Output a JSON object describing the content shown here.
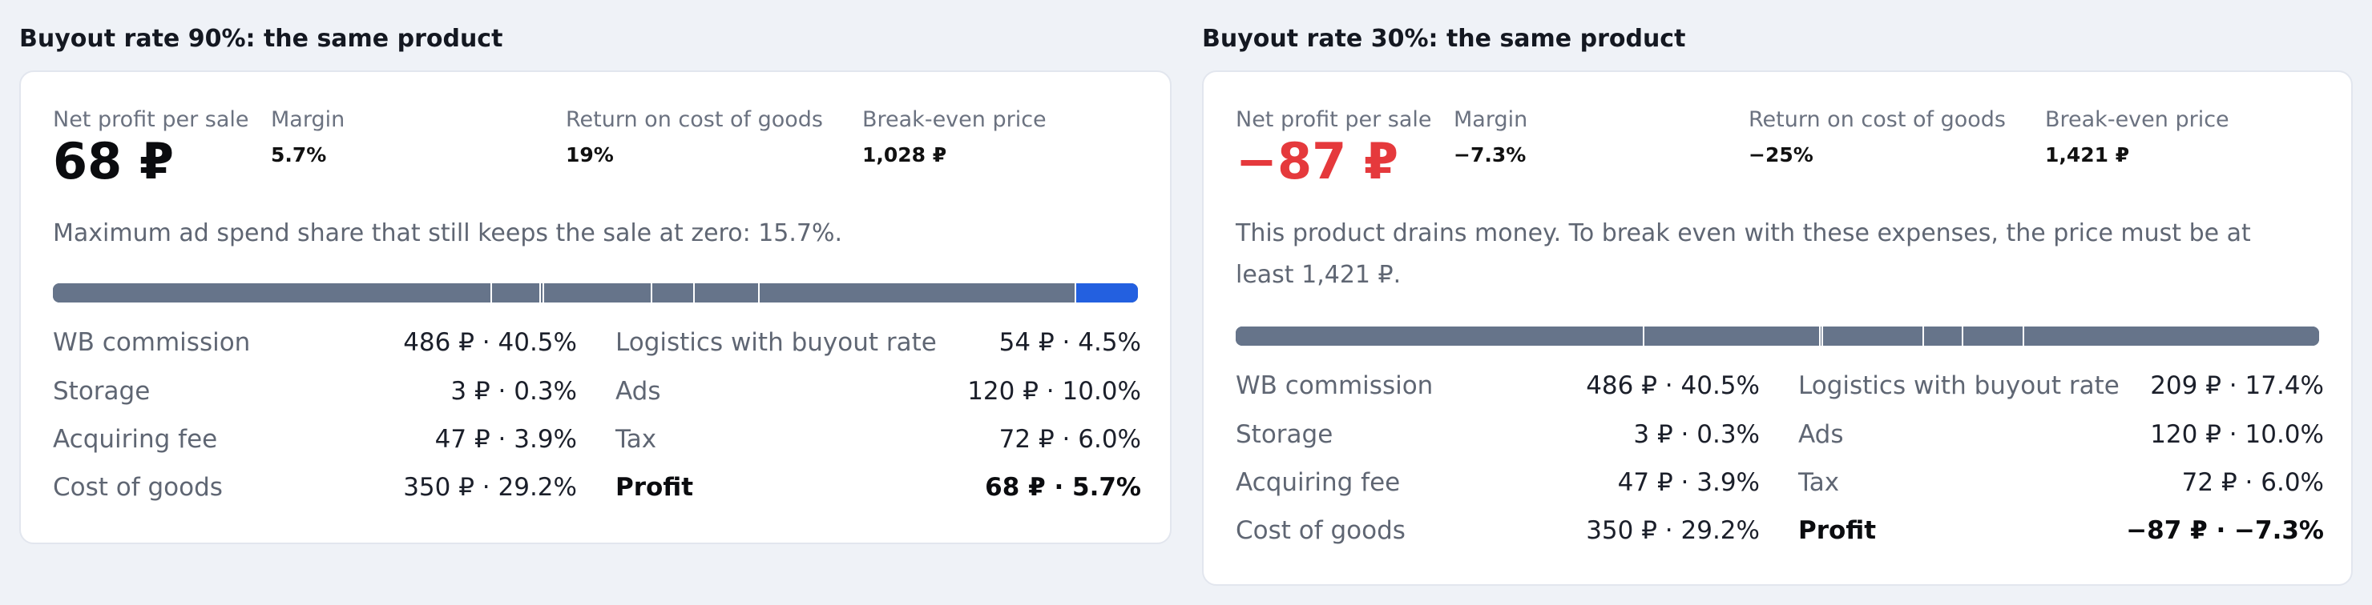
{
  "scenarios": [
    {
      "title": "Buyout rate 90%: the same product",
      "metrics": {
        "net_profit_label": "Net profit per sale",
        "net_profit_value": "68 ₽",
        "margin_label": "Margin",
        "margin_value": "5.7%",
        "roi_label": "Return on cost of goods",
        "roi_value": "19%",
        "breakeven_label": "Break-even price",
        "breakeven_value": "1,028 ₽"
      },
      "note": "Maximum ad spend share that still keeps the sale at zero: 15.7%.",
      "profit_negative": false,
      "cost_bar": [
        {
          "name": "WB commission",
          "share": 0.405
        },
        {
          "name": "Logistics with buyout rate",
          "share": 0.045
        },
        {
          "name": "Storage",
          "share": 0.003
        },
        {
          "name": "Ads",
          "share": 0.1
        },
        {
          "name": "Acquiring fee",
          "share": 0.039
        },
        {
          "name": "Tax",
          "share": 0.06
        },
        {
          "name": "Cost of goods",
          "share": 0.292
        },
        {
          "name": "Profit",
          "share": 0.057
        }
      ],
      "breakdown_left": [
        {
          "label": "WB commission",
          "value": "486 ₽ · 40.5%"
        },
        {
          "label": "Storage",
          "value": "3 ₽ · 0.3%"
        },
        {
          "label": "Acquiring fee",
          "value": "47 ₽ · 3.9%"
        },
        {
          "label": "Cost of goods",
          "value": "350 ₽ · 29.2%"
        }
      ],
      "breakdown_right": [
        {
          "label": "Logistics with buyout rate",
          "value": "54 ₽ · 4.5%"
        },
        {
          "label": "Ads",
          "value": "120 ₽ · 10.0%"
        },
        {
          "label": "Tax",
          "value": "72 ₽ · 6.0%"
        },
        {
          "label": "Profit",
          "value": "68 ₽ · 5.7%"
        }
      ]
    },
    {
      "title": "Buyout rate 30%: the same product",
      "metrics": {
        "net_profit_label": "Net profit per sale",
        "net_profit_value": "−87 ₽",
        "margin_label": "Margin",
        "margin_value": "−7.3%",
        "roi_label": "Return on cost of goods",
        "roi_value": "−25%",
        "breakeven_label": "Break-even price",
        "breakeven_value": "1,421 ₽"
      },
      "note": "This product drains money. To break even with these expenses, the price must be at least 1,421 ₽.",
      "profit_negative": true,
      "cost_bar": [
        {
          "name": "WB commission",
          "share": 0.405
        },
        {
          "name": "Logistics with buyout rate",
          "share": 0.174
        },
        {
          "name": "Storage",
          "share": 0.003
        },
        {
          "name": "Ads",
          "share": 0.1
        },
        {
          "name": "Acquiring fee",
          "share": 0.039
        },
        {
          "name": "Tax",
          "share": 0.06
        },
        {
          "name": "Cost of goods",
          "share": 0.292
        }
      ],
      "breakdown_left": [
        {
          "label": "WB commission",
          "value": "486 ₽ · 40.5%"
        },
        {
          "label": "Storage",
          "value": "3 ₽ · 0.3%"
        },
        {
          "label": "Acquiring fee",
          "value": "47 ₽ · 3.9%"
        },
        {
          "label": "Cost of goods",
          "value": "350 ₽ · 29.2%"
        }
      ],
      "breakdown_right": [
        {
          "label": "Logistics with buyout rate",
          "value": "209 ₽ · 17.4%"
        },
        {
          "label": "Ads",
          "value": "120 ₽ · 10.0%"
        },
        {
          "label": "Tax",
          "value": "72 ₽ · 6.0%"
        },
        {
          "label": "Profit",
          "value": "−87 ₽ · −7.3%"
        }
      ]
    }
  ]
}
